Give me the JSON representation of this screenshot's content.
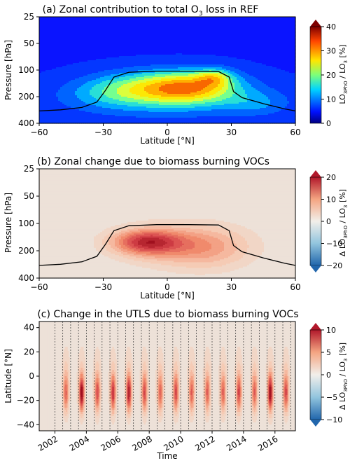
{
  "chart_data": [
    {
      "type": "heatmap",
      "panel_title": "(a) Zonal contribution to total O",
      "title_sub": "3",
      "title_tail": " loss in REF",
      "xlabel": "Latitude [°N]",
      "ylabel": "Pressure [hPa]",
      "xlim": [
        -60,
        60
      ],
      "ylim": [
        400,
        25
      ],
      "y_scale": "log",
      "x_ticks": [
        "−60",
        "−30",
        "0",
        "30",
        "60"
      ],
      "y_ticks": [
        "25",
        "50",
        "100",
        "200",
        "400"
      ],
      "colorbar": {
        "label": "LO3PhO / LO3 [%]",
        "label_main": "LO",
        "label_sub1": "3",
        "label_sub2": "PhO",
        "label_mid": " / LO",
        "label_sub3": "3",
        "label_unit": " [%]",
        "ticks": [
          "0",
          "10",
          "20",
          "30",
          "40"
        ],
        "range": [
          0,
          40
        ],
        "colormap": "jet",
        "extend": "max"
      },
      "fields": [
        {
          "lat": 12,
          "p": 155,
          "sx": 22,
          "sy": 0.42,
          "amp": 22
        },
        {
          "lat": 22,
          "p": 120,
          "sx": 8,
          "sy": 0.22,
          "amp": 11
        },
        {
          "lat": -12,
          "p": 160,
          "sx": 24,
          "sy": 0.45,
          "amp": 12
        },
        {
          "lat": 2,
          "p": 220,
          "sx": 55,
          "sy": 0.55,
          "amp": 6
        },
        {
          "lat": 42,
          "p": 240,
          "sx": 14,
          "sy": 0.3,
          "amp": 5
        },
        {
          "lat": -30,
          "p": 180,
          "sx": 20,
          "sy": 0.4,
          "amp": 4
        }
      ],
      "tropopause": [
        [
          -60,
          290
        ],
        [
          -50,
          282
        ],
        [
          -40,
          265
        ],
        [
          -33,
          230
        ],
        [
          -29,
          170
        ],
        [
          -25,
          120
        ],
        [
          -18,
          106
        ],
        [
          -5,
          103
        ],
        [
          10,
          103
        ],
        [
          24,
          104
        ],
        [
          29,
          120
        ],
        [
          31,
          175
        ],
        [
          35,
          205
        ],
        [
          45,
          240
        ],
        [
          55,
          275
        ],
        [
          60,
          290
        ]
      ]
    },
    {
      "type": "heatmap",
      "panel_title": "(b) Zonal change due to biomass burning VOCs",
      "xlabel": "Latitude [°N]",
      "ylabel": "Pressure [hPa]",
      "xlim": [
        -60,
        60
      ],
      "ylim": [
        400,
        25
      ],
      "y_scale": "log",
      "x_ticks": [
        "−60",
        "−30",
        "0",
        "30",
        "60"
      ],
      "y_ticks": [
        "25",
        "50",
        "100",
        "200",
        "400"
      ],
      "colorbar": {
        "label": "Δ LO3PhO / LO3 [%]",
        "label_main": "Δ LO",
        "label_sub1": "3",
        "label_sub2": "PhO",
        "label_mid": " / LO",
        "label_sub3": "3",
        "label_unit": " [%]",
        "ticks": [
          "−20",
          "−10",
          "0",
          "10",
          "20"
        ],
        "range": [
          -20,
          20
        ],
        "colormap": "RdBu_r",
        "extend": "both"
      },
      "fields": [
        {
          "lat": -10,
          "p": 160,
          "sx": 16,
          "sy": 0.32,
          "amp": 15
        },
        {
          "lat": 8,
          "p": 175,
          "sx": 28,
          "sy": 0.55,
          "amp": 7
        },
        {
          "lat": 20,
          "p": 190,
          "sx": 20,
          "sy": 0.55,
          "amp": 4
        }
      ],
      "tropopause": [
        [
          -60,
          290
        ],
        [
          -50,
          282
        ],
        [
          -40,
          265
        ],
        [
          -33,
          230
        ],
        [
          -29,
          170
        ],
        [
          -25,
          120
        ],
        [
          -18,
          106
        ],
        [
          -5,
          103
        ],
        [
          10,
          103
        ],
        [
          24,
          104
        ],
        [
          29,
          120
        ],
        [
          31,
          175
        ],
        [
          35,
          205
        ],
        [
          45,
          240
        ],
        [
          55,
          275
        ],
        [
          60,
          290
        ]
      ]
    },
    {
      "type": "heatmap",
      "panel_title": "(c) Change in the UTLS due to biomass burning VOCs",
      "xlabel": "Time",
      "ylabel": "Latitude [°N]",
      "xlim": [
        2001,
        2017.3
      ],
      "ylim": [
        -45,
        45
      ],
      "x_ticks": [
        "2002",
        "2004",
        "2006",
        "2008",
        "2010",
        "2012",
        "2014",
        "2016"
      ],
      "x_tick_values": [
        2002,
        2004,
        2006,
        2008,
        2010,
        2012,
        2014,
        2016
      ],
      "y_ticks": [
        "−40",
        "−20",
        "0",
        "20",
        "40"
      ],
      "y_tick_values": [
        -40,
        -20,
        0,
        20,
        40
      ],
      "colorbar": {
        "label": "Δ LO3PhO / LO3 [%]",
        "label_main": "Δ LO",
        "label_sub1": "3",
        "label_sub2": "PhO",
        "label_mid": " / LO",
        "label_sub3": "3",
        "label_unit": " [%]",
        "ticks": [
          "−10",
          "−5",
          "0",
          "5",
          "10"
        ],
        "range": [
          -10,
          10
        ],
        "colormap": "RdBu_r",
        "extend": "both"
      },
      "seasonal_peaks": [
        2002.7,
        2003.7,
        2004.7,
        2005.7,
        2006.7,
        2007.7,
        2008.7,
        2009.7,
        2010.7,
        2011.7,
        2012.7,
        2013.7,
        2014.7,
        2015.7,
        2016.7
      ],
      "peak_amplitudes": [
        5,
        9,
        6,
        7,
        8,
        6,
        5,
        6,
        5,
        5,
        5,
        6,
        5,
        9,
        6
      ],
      "dashed_year_lines": [
        2002,
        2002.5,
        2003,
        2003.5,
        2004,
        2004.5,
        2005,
        2005.5,
        2006,
        2006.5,
        2007,
        2007.5,
        2008,
        2008.5,
        2009,
        2009.5,
        2010,
        2010.5,
        2011,
        2011.5,
        2012,
        2012.5,
        2013,
        2013.5,
        2014,
        2014.5,
        2015,
        2015.5,
        2016,
        2016.5,
        2017
      ]
    }
  ]
}
